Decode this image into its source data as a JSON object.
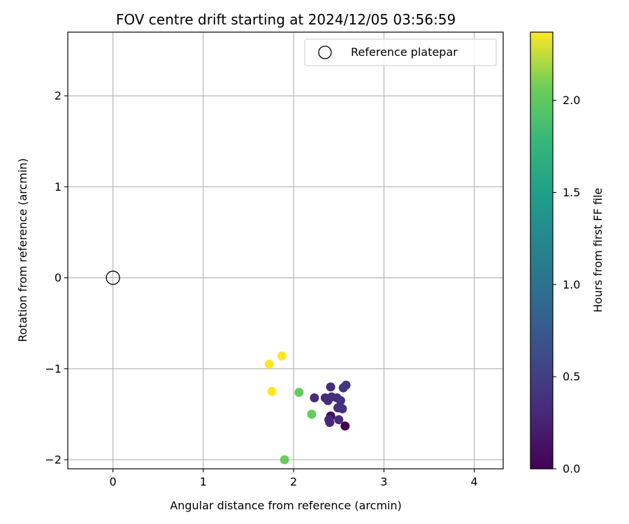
{
  "chart_data": {
    "type": "scatter",
    "title": "FOV centre drift starting at 2024/12/05 03:56:59",
    "xlabel": "Angular distance from reference (arcmin)",
    "ylabel": "Rotation from reference (arcmin)",
    "xlim": [
      -0.5,
      4.32
    ],
    "ylim": [
      -2.1,
      2.7
    ],
    "xticks": [
      0,
      1,
      2,
      3,
      4
    ],
    "yticks": [
      -2,
      -1,
      0,
      1,
      2
    ],
    "grid": true,
    "legend": {
      "placement": "top-right",
      "entries": [
        "Reference platepar"
      ]
    },
    "reference_point": {
      "x": 0.0,
      "y": 0.0,
      "label": "Reference platepar",
      "marker": "open-circle"
    },
    "colorbar": {
      "label": "Hours from first FF file",
      "colormap": "viridis",
      "range": [
        0.0,
        2.37
      ],
      "ticks": [
        0.0,
        0.5,
        1.0,
        1.5,
        2.0
      ]
    },
    "points": [
      {
        "x": 2.57,
        "y": -1.63,
        "hours": 0.0
      },
      {
        "x": 2.41,
        "y": -1.52,
        "hours": 0.05
      },
      {
        "x": 2.39,
        "y": -1.56,
        "hours": 0.3
      },
      {
        "x": 2.4,
        "y": -1.59,
        "hours": 0.3
      },
      {
        "x": 2.5,
        "y": -1.56,
        "hours": 0.32
      },
      {
        "x": 2.23,
        "y": -1.32,
        "hours": 0.32
      },
      {
        "x": 2.35,
        "y": -1.32,
        "hours": 0.32
      },
      {
        "x": 2.38,
        "y": -1.35,
        "hours": 0.34
      },
      {
        "x": 2.41,
        "y": -1.2,
        "hours": 0.35
      },
      {
        "x": 2.42,
        "y": -1.31,
        "hours": 0.35
      },
      {
        "x": 2.48,
        "y": -1.32,
        "hours": 0.36
      },
      {
        "x": 2.52,
        "y": -1.35,
        "hours": 0.36
      },
      {
        "x": 2.49,
        "y": -1.43,
        "hours": 0.38
      },
      {
        "x": 2.54,
        "y": -1.44,
        "hours": 0.38
      },
      {
        "x": 2.55,
        "y": -1.21,
        "hours": 0.4
      },
      {
        "x": 2.58,
        "y": -1.18,
        "hours": 0.42
      },
      {
        "x": 2.06,
        "y": -1.26,
        "hours": 2.03
      },
      {
        "x": 2.2,
        "y": -1.5,
        "hours": 2.03
      },
      {
        "x": 1.9,
        "y": -2.0,
        "hours": 2.05
      },
      {
        "x": 1.73,
        "y": -0.95,
        "hours": 2.37
      },
      {
        "x": 1.87,
        "y": -0.86,
        "hours": 2.37
      },
      {
        "x": 1.76,
        "y": -1.25,
        "hours": 2.37
      }
    ]
  }
}
